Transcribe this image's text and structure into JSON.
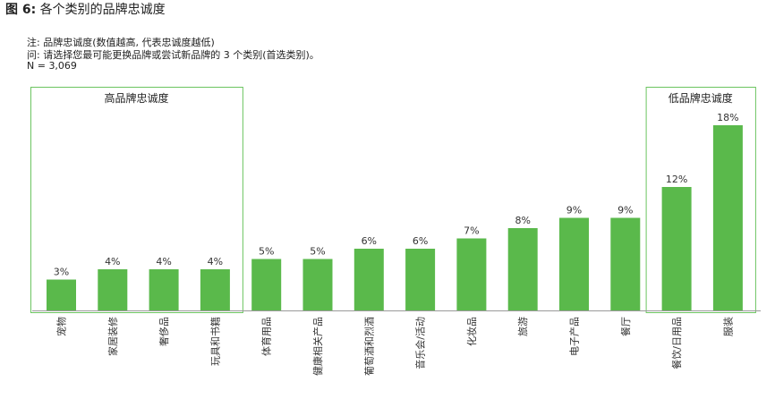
{
  "figure": {
    "title_bold": "图 6:",
    "title_rest": "各个类别的品牌忠诚度",
    "note_line1": "注: 品牌忠诚度(数值越高, 代表忠诚度越低)",
    "note_line2": "问: 请选择您最可能更换品牌或尝试新品牌的 3 个类别(首选类别)。",
    "note_line3": "N = 3,069"
  },
  "colors": {
    "bar": "#5ab94b",
    "box_border": "#6cc460",
    "axis": "#9a9a9a"
  },
  "chart_data": {
    "type": "bar",
    "title": "各个类别的品牌忠诚度",
    "categories": [
      "宠物",
      "家居装修",
      "奢侈品",
      "玩具和书籍",
      "体育用品",
      "健康相关产品",
      "葡萄酒和烈酒",
      "音乐会/活动",
      "化妆品",
      "旅游",
      "电子产品",
      "餐厅",
      "餐饮/日用品",
      "服装"
    ],
    "values": [
      3,
      4,
      4,
      4,
      5,
      5,
      6,
      6,
      7,
      8,
      9,
      9,
      12,
      18
    ],
    "value_labels": [
      "3%",
      "4%",
      "4%",
      "4%",
      "5%",
      "5%",
      "6%",
      "6%",
      "7%",
      "8%",
      "9%",
      "9%",
      "12%",
      "18%"
    ],
    "unit": "%",
    "ylim": [
      0,
      18
    ],
    "grid": false,
    "legend": "none",
    "groups": [
      {
        "label": "高品牌忠诚度",
        "categories": [
          "宠物",
          "家居装修",
          "奢侈品",
          "玩具和书籍"
        ]
      },
      {
        "label": "低品牌忠诚度",
        "categories": [
          "餐饮/日用品",
          "服装"
        ]
      }
    ]
  }
}
